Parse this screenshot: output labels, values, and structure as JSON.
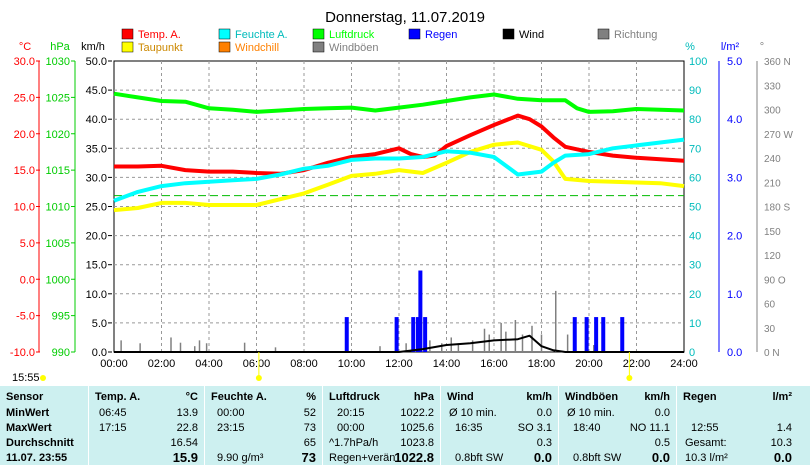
{
  "chart_data": {
    "type": "line",
    "title": "Donnerstag, 11.07.2019",
    "x_ticks": [
      "00:00",
      "02:00",
      "04:00",
      "06:00",
      "08:00",
      "10:00",
      "12:00",
      "14:00",
      "16:00",
      "18:00",
      "20:00",
      "22:00",
      "24:00"
    ],
    "x_range_hours": [
      0,
      24
    ],
    "grid": true,
    "legend": [
      {
        "label": "Temp. A.",
        "color": "#ff0000"
      },
      {
        "label": "Taupunkt",
        "color": "#ffff00"
      },
      {
        "label": "Feuchte A.",
        "color": "#00ffff"
      },
      {
        "label": "Windchill",
        "color": "#ff8000"
      },
      {
        "label": "Luftdruck",
        "color": "#00ff00"
      },
      {
        "label": "Windböen",
        "color": "#808080"
      },
      {
        "label": "Regen",
        "color": "#0000ff"
      },
      {
        "label": "Wind",
        "color": "#000000"
      },
      {
        "label": "Richtung",
        "color": "#808080"
      }
    ],
    "axes": {
      "temp": {
        "unit": "°C",
        "color": "#ff0000",
        "ticks": [
          "30.0",
          "25.0",
          "20.0",
          "15.0",
          "10.0",
          "5.0",
          "0.0",
          "-5.0",
          "-10.0"
        ],
        "range": [
          -10,
          30
        ]
      },
      "pressure": {
        "unit": "hPa",
        "color": "#00cc00",
        "ticks": [
          "1030",
          "1025",
          "1020",
          "1015",
          "1010",
          "1005",
          "1000",
          "995",
          "990"
        ],
        "range": [
          990,
          1030
        ]
      },
      "wind": {
        "unit": "km/h",
        "color": "#000000",
        "ticks": [
          "50.0",
          "45.0",
          "40.0",
          "35.0",
          "30.0",
          "25.0",
          "20.0",
          "15.0",
          "10.0",
          "5.0",
          "0.0"
        ],
        "range": [
          0,
          50
        ]
      },
      "humidity": {
        "unit": "%",
        "color": "#00bbbb",
        "ticks": [
          "100",
          "90",
          "80",
          "70",
          "60",
          "50",
          "40",
          "30",
          "20",
          "10",
          "0"
        ],
        "range": [
          0,
          100
        ]
      },
      "rain": {
        "unit": "l/m²",
        "color": "#0000ff",
        "ticks": [
          "5.0",
          "4.0",
          "3.0",
          "2.0",
          "1.0",
          "0.0"
        ],
        "range": [
          0,
          5
        ]
      },
      "direction": {
        "unit": "°",
        "color": "#808080",
        "ticks": [
          "360 N",
          "330",
          "300",
          "270 W",
          "240",
          "210",
          "180 S",
          "150",
          "120",
          "90 O",
          "60",
          "30",
          "0 N"
        ],
        "range": [
          0,
          360
        ]
      }
    },
    "series": [
      {
        "name": "Temp. A.",
        "axis": "temp",
        "color": "#ff0000",
        "points": [
          [
            0,
            15.5
          ],
          [
            1,
            15.5
          ],
          [
            2,
            15.6
          ],
          [
            3,
            15.0
          ],
          [
            4,
            14.8
          ],
          [
            5,
            14.8
          ],
          [
            6,
            14.6
          ],
          [
            7,
            14.5
          ],
          [
            8,
            15.0
          ],
          [
            9,
            16.0
          ],
          [
            10,
            16.8
          ],
          [
            11,
            17.2
          ],
          [
            12,
            18.0
          ],
          [
            12.5,
            17.2
          ],
          [
            13,
            16.8
          ],
          [
            13.5,
            17.0
          ],
          [
            14,
            18.3
          ],
          [
            15,
            19.8
          ],
          [
            16,
            21.2
          ],
          [
            17,
            22.5
          ],
          [
            17.5,
            22.0
          ],
          [
            18,
            21.0
          ],
          [
            18.5,
            19.5
          ],
          [
            19,
            18.2
          ],
          [
            20,
            17.5
          ],
          [
            21,
            17.0
          ],
          [
            22,
            16.7
          ],
          [
            23,
            16.5
          ],
          [
            24,
            16.3
          ]
        ]
      },
      {
        "name": "Taupunkt",
        "axis": "temp",
        "color": "#ffff00",
        "points": [
          [
            0,
            9.5
          ],
          [
            1,
            9.8
          ],
          [
            2,
            10.5
          ],
          [
            3,
            10.5
          ],
          [
            4,
            10.2
          ],
          [
            5,
            10.2
          ],
          [
            6,
            10.2
          ],
          [
            7,
            11.0
          ],
          [
            8,
            11.8
          ],
          [
            9,
            13.0
          ],
          [
            10,
            14.2
          ],
          [
            11,
            14.5
          ],
          [
            12,
            15.0
          ],
          [
            13,
            14.6
          ],
          [
            14,
            16.0
          ],
          [
            15,
            17.5
          ],
          [
            16,
            18.5
          ],
          [
            17,
            18.8
          ],
          [
            18,
            17.8
          ],
          [
            18.5,
            16.2
          ],
          [
            19,
            13.8
          ],
          [
            20,
            13.5
          ],
          [
            21,
            13.4
          ],
          [
            22,
            13.3
          ],
          [
            23,
            13.2
          ],
          [
            24,
            12.8
          ]
        ]
      },
      {
        "name": "Feuchte A.",
        "axis": "humidity",
        "color": "#00ffff",
        "points": [
          [
            0,
            52
          ],
          [
            1,
            55
          ],
          [
            2,
            57
          ],
          [
            3,
            58
          ],
          [
            4,
            58.5
          ],
          [
            5,
            59
          ],
          [
            6,
            59.5
          ],
          [
            7,
            61
          ],
          [
            8,
            63
          ],
          [
            9,
            64
          ],
          [
            10,
            66
          ],
          [
            11,
            66.5
          ],
          [
            12,
            66.5
          ],
          [
            13,
            67
          ],
          [
            14,
            69
          ],
          [
            15,
            68.5
          ],
          [
            16,
            67
          ],
          [
            17,
            61
          ],
          [
            18,
            62
          ],
          [
            18.5,
            65
          ],
          [
            19,
            67.5
          ],
          [
            20,
            68
          ],
          [
            21,
            70
          ],
          [
            22,
            71
          ],
          [
            23,
            72
          ],
          [
            24,
            73
          ]
        ]
      },
      {
        "name": "Luftdruck",
        "axis": "pressure",
        "color": "#00ff00",
        "points": [
          [
            0,
            1025.5
          ],
          [
            1,
            1025.0
          ],
          [
            2,
            1024.5
          ],
          [
            3,
            1024.4
          ],
          [
            4,
            1023.5
          ],
          [
            5,
            1023.3
          ],
          [
            6,
            1023.0
          ],
          [
            7,
            1023.2
          ],
          [
            8,
            1023.4
          ],
          [
            9,
            1023.5
          ],
          [
            10,
            1023.6
          ],
          [
            11,
            1023.2
          ],
          [
            12,
            1023.6
          ],
          [
            13,
            1024.0
          ],
          [
            14,
            1024.5
          ],
          [
            15,
            1025.0
          ],
          [
            16,
            1025.4
          ],
          [
            17,
            1024.8
          ],
          [
            18,
            1024.6
          ],
          [
            19,
            1024.6
          ],
          [
            19.5,
            1023.5
          ],
          [
            20,
            1023.0
          ],
          [
            21,
            1023.1
          ],
          [
            22,
            1023.4
          ],
          [
            23,
            1023.3
          ],
          [
            24,
            1023.2
          ]
        ]
      },
      {
        "name": "Wind",
        "axis": "wind",
        "color": "#000000",
        "points": [
          [
            0,
            0
          ],
          [
            6,
            0
          ],
          [
            10,
            0
          ],
          [
            12,
            0
          ],
          [
            13,
            0.5
          ],
          [
            14,
            1.2
          ],
          [
            15,
            1.5
          ],
          [
            16,
            2.0
          ],
          [
            17,
            2.2
          ],
          [
            17.5,
            2.8
          ],
          [
            18,
            1.0
          ],
          [
            18.5,
            0.3
          ],
          [
            19,
            0
          ],
          [
            24,
            0
          ]
        ]
      }
    ],
    "rain_bars": [
      [
        9.8,
        0.6
      ],
      [
        11.9,
        0.6
      ],
      [
        12.6,
        0.6
      ],
      [
        12.8,
        0.6
      ],
      [
        12.9,
        1.4
      ],
      [
        13.1,
        0.6
      ],
      [
        19.4,
        0.6
      ],
      [
        19.9,
        0.6
      ],
      [
        20.3,
        0.6
      ],
      [
        20.6,
        0.6
      ],
      [
        21.4,
        0.6
      ]
    ],
    "gust_spikes": [
      [
        0.3,
        2
      ],
      [
        1.1,
        1.5
      ],
      [
        2.4,
        2.5
      ],
      [
        2.8,
        1.6
      ],
      [
        3.4,
        1.0
      ],
      [
        3.6,
        2.0
      ],
      [
        3.9,
        1.5
      ],
      [
        5.5,
        1.6
      ],
      [
        6.8,
        0.8
      ],
      [
        11.2,
        1.0
      ],
      [
        12.3,
        1.5
      ],
      [
        12.9,
        1.0
      ],
      [
        13.3,
        2.0
      ],
      [
        13.8,
        1.5
      ],
      [
        14.2,
        2.5
      ],
      [
        14.5,
        1.5
      ],
      [
        15.1,
        2.0
      ],
      [
        15.6,
        4.0
      ],
      [
        15.8,
        3.0
      ],
      [
        16.3,
        5.0
      ],
      [
        16.5,
        3.5
      ],
      [
        16.9,
        5.5
      ],
      [
        17.2,
        3.0
      ],
      [
        17.6,
        4.5
      ],
      [
        18.0,
        3.0
      ],
      [
        18.6,
        10.5
      ],
      [
        19.1,
        3.0
      ],
      [
        20.2,
        1.2
      ],
      [
        20.6,
        1.5
      ],
      [
        21.4,
        2.0
      ]
    ],
    "dew_reference_line": {
      "axis": "temp",
      "value": 11.5,
      "color": "#00bb00"
    }
  },
  "time_stamp": "15:55",
  "table": {
    "sensor": {
      "header": "Sensor",
      "rows": [
        "MinWert",
        "MaxWert",
        "Durchschnitt",
        "11.07. 23:55"
      ]
    },
    "temp": {
      "header": "Temp. A.",
      "unit": "°C",
      "time": [
        "06:45",
        "17:15",
        "",
        ""
      ],
      "value": [
        "13.9",
        "22.8",
        "16.54",
        "15.9"
      ]
    },
    "humidity": {
      "header": "Feuchte A.",
      "unit": "%",
      "time": [
        "00:00",
        "23:15",
        "",
        "9.90 g/m³"
      ],
      "value": [
        "52",
        "73",
        "65",
        "73"
      ]
    },
    "pressure": {
      "header": "Luftdruck",
      "unit": "hPa",
      "time": [
        "20:15",
        "00:00",
        "^1.7hPa/h",
        "Regen+verän"
      ],
      "value": [
        "1022.2",
        "1025.6",
        "1023.8",
        "1022.8"
      ]
    },
    "wind": {
      "header": "Wind",
      "unit": "km/h",
      "label": [
        "Ø 10 min.",
        "16:35",
        "",
        "0.8bft SW"
      ],
      "dir": [
        "",
        "SO 3.1",
        "",
        ""
      ],
      "value": [
        "0.0",
        "",
        "0.3",
        "0.0"
      ]
    },
    "gusts": {
      "header": "Windböen",
      "unit": "km/h",
      "label": [
        "Ø 10 min.",
        "18:40",
        "",
        "0.8bft SW"
      ],
      "dir": [
        "",
        "NO 11.1",
        "",
        ""
      ],
      "value": [
        "0.0",
        "",
        "0.5",
        "0.0"
      ]
    },
    "rain": {
      "header": "Regen",
      "unit": "l/m²",
      "label": [
        "",
        "12:55",
        "Gesamt:",
        "10.3 l/m²"
      ],
      "value": [
        "",
        "1.4",
        "10.3",
        "0.0"
      ]
    }
  }
}
